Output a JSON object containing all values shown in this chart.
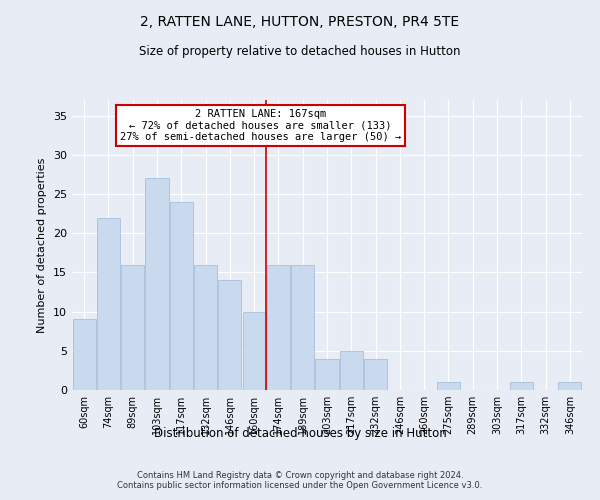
{
  "title": "2, RATTEN LANE, HUTTON, PRESTON, PR4 5TE",
  "subtitle": "Size of property relative to detached houses in Hutton",
  "xlabel": "Distribution of detached houses by size in Hutton",
  "ylabel": "Number of detached properties",
  "categories": [
    "60sqm",
    "74sqm",
    "89sqm",
    "103sqm",
    "117sqm",
    "132sqm",
    "146sqm",
    "160sqm",
    "174sqm",
    "189sqm",
    "203sqm",
    "217sqm",
    "232sqm",
    "246sqm",
    "260sqm",
    "275sqm",
    "289sqm",
    "303sqm",
    "317sqm",
    "332sqm",
    "346sqm"
  ],
  "values": [
    9,
    22,
    16,
    27,
    24,
    16,
    14,
    10,
    16,
    16,
    4,
    5,
    4,
    0,
    0,
    1,
    0,
    0,
    1,
    0,
    1
  ],
  "bar_color": "#c9d9ee",
  "bar_edge_color": "#a8c0dc",
  "vline_x": 7.5,
  "vline_color": "#cc0000",
  "annotation_text": "2 RATTEN LANE: 167sqm\n← 72% of detached houses are smaller (133)\n27% of semi-detached houses are larger (50) →",
  "annotation_box_color": "#ffffff",
  "annotation_box_edge_color": "#cc0000",
  "ylim": [
    0,
    37
  ],
  "yticks": [
    0,
    5,
    10,
    15,
    20,
    25,
    30,
    35
  ],
  "background_color": "#e8edf5",
  "grid_color": "#ffffff",
  "footer": "Contains HM Land Registry data © Crown copyright and database right 2024.\nContains public sector information licensed under the Open Government Licence v3.0."
}
